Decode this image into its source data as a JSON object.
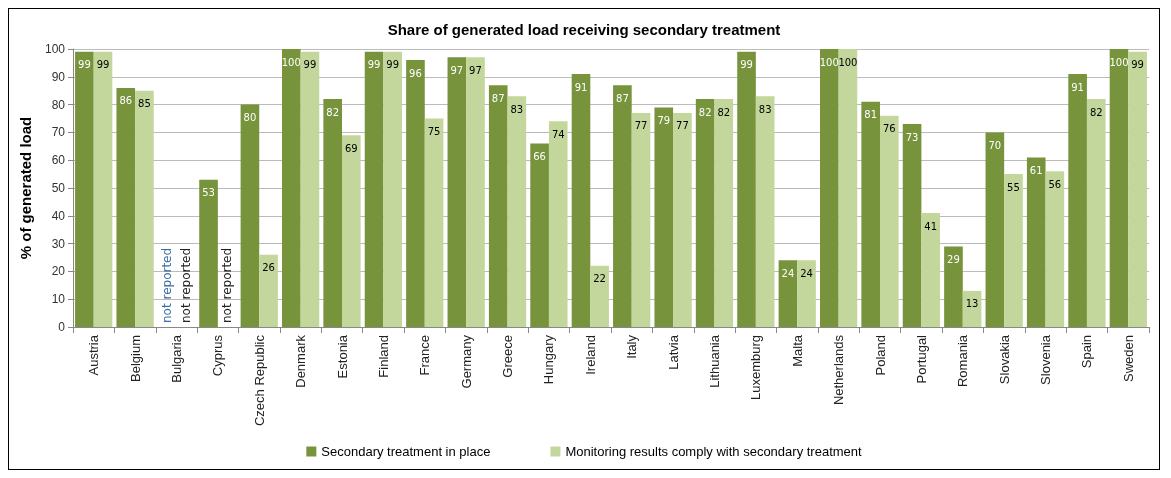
{
  "chart_data": {
    "type": "bar",
    "title": "Share of generated load receiving secondary treatment",
    "ylabel": "% of generated load",
    "categories": [
      "Austria",
      "Belgium",
      "Bulgaria",
      "Cyprus",
      "Czech Republic",
      "Denmark",
      "Estonia",
      "Finland",
      "France",
      "Germany",
      "Greece",
      "Hungary",
      "Ireland",
      "Italy",
      "Latvia",
      "Lithuania",
      "Luxemburg",
      "Malta",
      "Netherlands",
      "Poland",
      "Portugal",
      "Romania",
      "Slovakia",
      "Slovenia",
      "Spain",
      "Sweden"
    ],
    "series": [
      {
        "name": "Secondary treatment in place",
        "color": "#77933c",
        "values": [
          99,
          86,
          null,
          53,
          80,
          100,
          82,
          99,
          96,
          97,
          87,
          66,
          91,
          87,
          79,
          82,
          99,
          24,
          100,
          81,
          73,
          29,
          70,
          61,
          91,
          100
        ],
        "value_labels": [
          "99",
          "86",
          "not reported",
          "53",
          "80",
          "100",
          "82",
          "99",
          "96",
          "97",
          "87",
          "66",
          "91",
          "87",
          "79",
          "82",
          "99",
          "24",
          "100",
          "81",
          "73",
          "29",
          "70",
          "61",
          "91",
          "100"
        ]
      },
      {
        "name": "Monitoring results comply with secondary treatment",
        "color": "#c3d69b",
        "values": [
          99,
          85,
          null,
          null,
          26,
          99,
          69,
          99,
          75,
          97,
          83,
          74,
          22,
          77,
          77,
          82,
          83,
          24,
          100,
          76,
          41,
          13,
          55,
          56,
          82,
          99
        ],
        "value_labels": [
          "99",
          "85",
          "not reported",
          "not reported",
          "26",
          "99",
          "69",
          "99",
          "75",
          "97",
          "83",
          "74",
          "22",
          "77",
          "77",
          "82",
          "83",
          "24",
          "100",
          "76",
          "41",
          "13",
          "55",
          "56",
          "82",
          "99"
        ]
      }
    ],
    "ylim": [
      0,
      100
    ],
    "yticks": [
      0,
      10,
      20,
      30,
      40,
      50,
      60,
      70,
      80,
      90,
      100
    ],
    "grid": "y",
    "legend": "bottom"
  }
}
